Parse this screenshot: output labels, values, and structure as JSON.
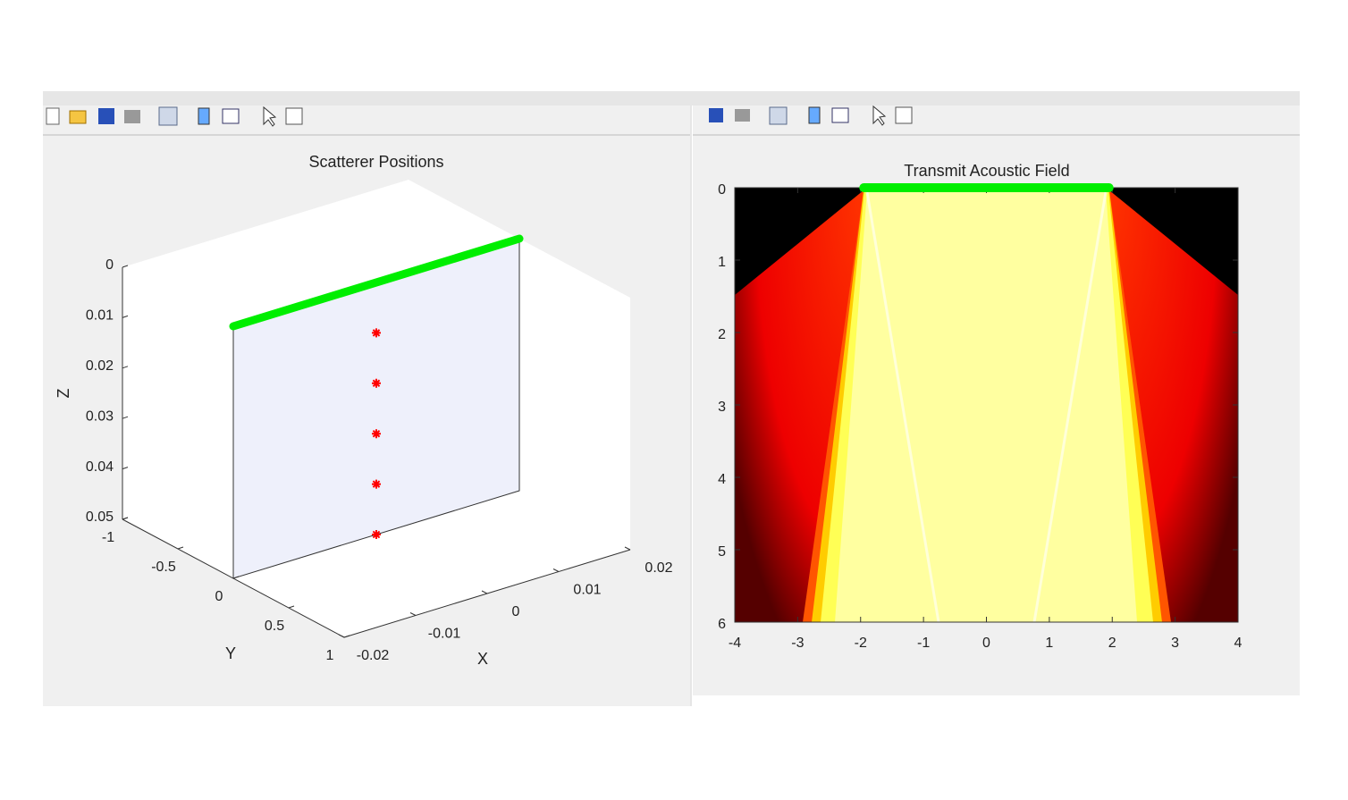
{
  "chart_data": [
    {
      "type": "scatter3d",
      "title": "Scatterer Positions",
      "xlabel": "X",
      "ylabel": "Y",
      "zlabel": "Z",
      "xlim": [
        -0.02,
        0.02
      ],
      "ylim": [
        -1,
        1
      ],
      "zlim": [
        0,
        0.05
      ],
      "zdir": "reverse",
      "xticks": [
        -0.02,
        -0.01,
        0,
        0.01,
        0.02
      ],
      "yticks": [
        -1,
        -0.5,
        0,
        0.5,
        1
      ],
      "zticks": [
        0,
        0.01,
        0.02,
        0.03,
        0.04,
        0.05
      ],
      "series": [
        {
          "style": "marker",
          "color": "#ff0000",
          "x": [
            0,
            0,
            0,
            0,
            0
          ],
          "y": [
            0,
            0,
            0,
            0,
            0
          ],
          "z": [
            0.01,
            0.02,
            0.03,
            0.04,
            0.05
          ]
        },
        {
          "style": "line",
          "color": "#00ee00",
          "x": [
            -0.02,
            0.02
          ],
          "y": [
            0,
            0
          ],
          "z": [
            0,
            0
          ]
        }
      ]
    },
    {
      "type": "heatmap",
      "title": "Transmit Acoustic Field",
      "colormap": "hot",
      "xlim": [
        -4,
        4
      ],
      "ylim": [
        0,
        6
      ],
      "ydir": "reverse",
      "xticks": [
        -4,
        -3,
        -2,
        -1,
        0,
        1,
        2,
        3,
        4
      ],
      "yticks": [
        0,
        1,
        2,
        3,
        4,
        5,
        6
      ],
      "series": [
        {
          "style": "line",
          "color": "#00ee00",
          "x": [
            -1.95,
            1.95
          ],
          "y": [
            0,
            0
          ]
        }
      ]
    }
  ]
}
